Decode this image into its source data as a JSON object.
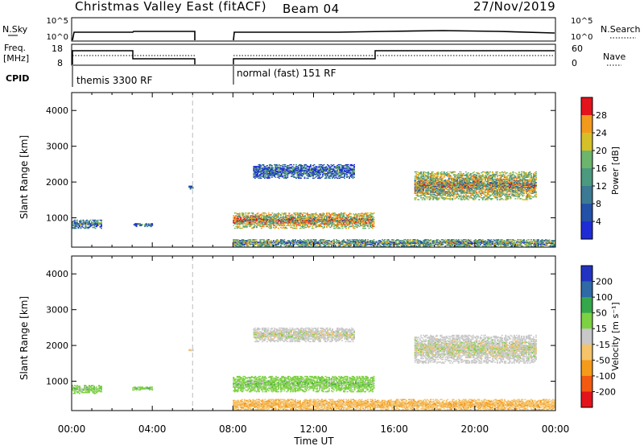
{
  "header": {
    "station": "Christmas Valley East (fitACF)",
    "beam": "Beam 04",
    "date": "27/Nov/2019"
  },
  "aux_labels": {
    "nsky": "N.Sky",
    "nsky_ticks": [
      "10^5",
      "10^0"
    ],
    "nsearch": "N.Search",
    "nsearch_ticks": [
      "10^5",
      "10^0"
    ],
    "freq": "Freq.",
    "freq_unit": "[MHz]",
    "freq_ticks": [
      "18",
      "8"
    ],
    "nave": "Nave",
    "nave_ticks": [
      "60",
      "0"
    ],
    "cpid": "CPID",
    "cpid_1": "themis 3300 RF",
    "cpid_2": "normal (fast) 151 RF"
  },
  "axes": {
    "xlabel": "Time UT",
    "ylabel": "Slant Range [km]",
    "x_ticks": [
      "00:00",
      "04:00",
      "08:00",
      "12:00",
      "16:00",
      "20:00",
      "00:00"
    ],
    "y_ticks": [
      "1000",
      "2000",
      "3000",
      "4000"
    ]
  },
  "colorbars": {
    "power_label": "Power [dB]",
    "power_ticks": [
      "4",
      "8",
      "12",
      "16",
      "20",
      "24",
      "28"
    ],
    "velocity_label": "Velocity [m s⁻¹]",
    "velocity_ticks": [
      "-200",
      "-100",
      "-50",
      "-15",
      "15",
      "50",
      "100",
      "200"
    ]
  },
  "chart_data": [
    {
      "type": "heatmap",
      "name": "power",
      "x_unit": "hours UT",
      "xlim": [
        0,
        24
      ],
      "ylim": [
        180,
        4500
      ],
      "zlim": [
        0,
        30
      ],
      "data_gap": [
        6,
        8
      ],
      "regions": [
        {
          "t": [
            0.0,
            1.5
          ],
          "r": [
            700,
            950
          ],
          "level": 8
        },
        {
          "t": [
            3.0,
            4.0
          ],
          "r": [
            750,
            850
          ],
          "level": 6
        },
        {
          "t": [
            5.8,
            6.0
          ],
          "r": [
            1800,
            1900
          ],
          "level": 8
        },
        {
          "t": [
            8.0,
            15.0
          ],
          "r": [
            700,
            1150
          ],
          "level": 18
        },
        {
          "t": [
            8.0,
            24.0
          ],
          "r": [
            180,
            400
          ],
          "level": 12
        },
        {
          "t": [
            9.0,
            14.0
          ],
          "r": [
            2100,
            2500
          ],
          "level": 6
        },
        {
          "t": [
            17.0,
            23.0
          ],
          "r": [
            1500,
            2300
          ],
          "level": 16
        }
      ]
    },
    {
      "type": "heatmap",
      "name": "velocity",
      "x_unit": "hours UT",
      "xlim": [
        0,
        24
      ],
      "ylim": [
        180,
        4500
      ],
      "zlim": [
        -200,
        200
      ],
      "data_gap": [
        6,
        8
      ],
      "regions": [
        {
          "t": [
            0.0,
            1.5
          ],
          "r": [
            650,
            900
          ],
          "level": 30
        },
        {
          "t": [
            3.0,
            4.0
          ],
          "r": [
            750,
            850
          ],
          "level": 30
        },
        {
          "t": [
            5.8,
            6.0
          ],
          "r": [
            1800,
            1900
          ],
          "level": 0
        },
        {
          "t": [
            8.0,
            15.0
          ],
          "r": [
            700,
            1150
          ],
          "level": 30
        },
        {
          "t": [
            8.0,
            24.0
          ],
          "r": [
            180,
            500
          ],
          "level": -40
        },
        {
          "t": [
            9.0,
            14.0
          ],
          "r": [
            2100,
            2500
          ],
          "level": 0
        },
        {
          "t": [
            17.0,
            23.0
          ],
          "r": [
            1500,
            2300
          ],
          "level": 0
        }
      ]
    }
  ]
}
